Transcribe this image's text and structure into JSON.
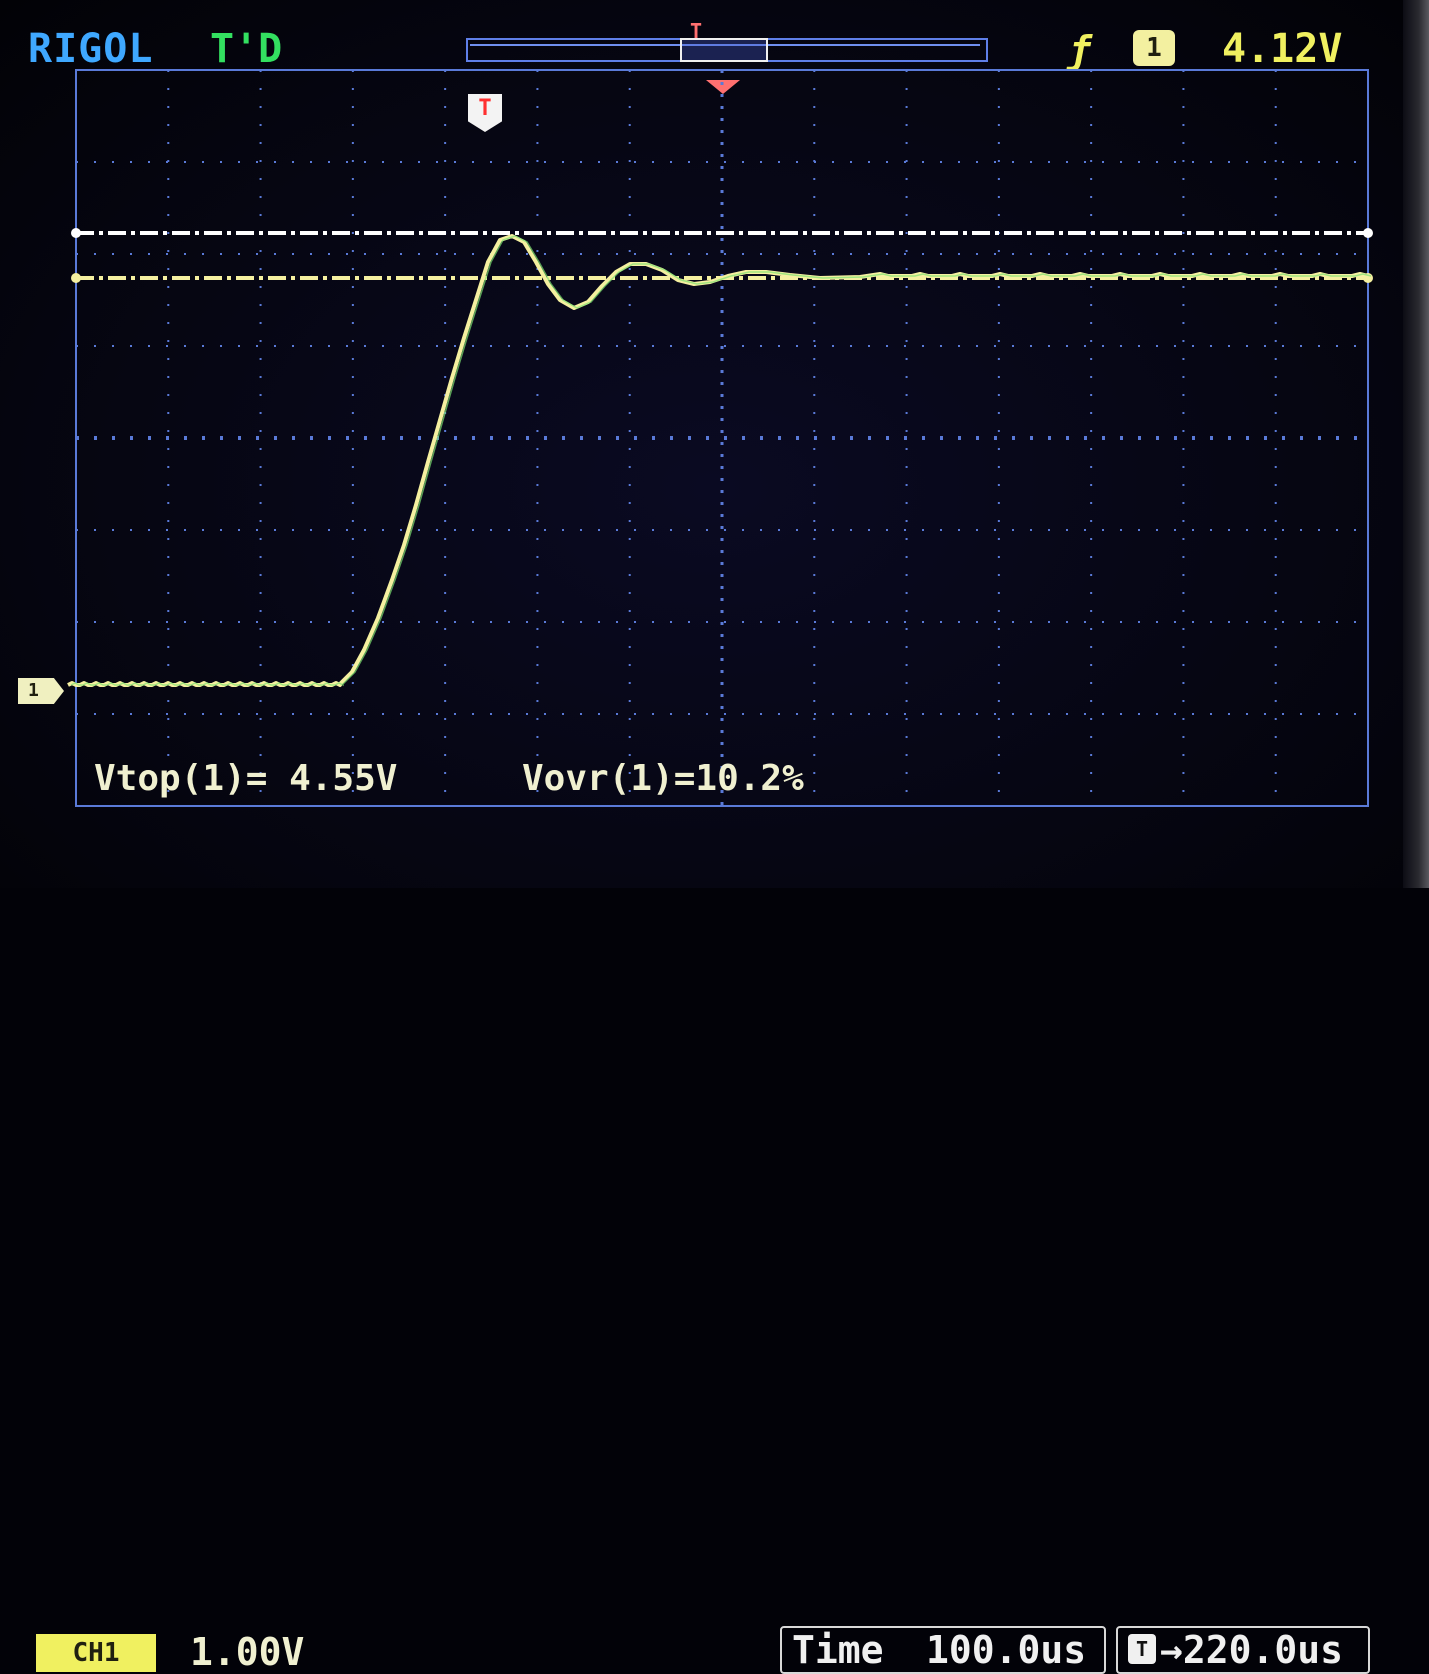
{
  "header": {
    "brand": "RIGOL",
    "acquire_status": "T'D",
    "trigger_position_label": "T",
    "trigger_flag_label": "T",
    "trigger_edge_icon": "rising-edge-icon",
    "trigger_source": "1",
    "trigger_level": "4.12V"
  },
  "screen": {
    "channel_marker": "1",
    "cursor_lines": [
      {
        "name": "top-level-line",
        "color": "#ffffff"
      },
      {
        "name": "base-level-line",
        "color": "#f5f0a0"
      }
    ],
    "trace_color": "#f5f0a0",
    "grid_color": "#5a7ad8"
  },
  "measurements": [
    {
      "label": "Vtop(1)=",
      "value": "4.55V"
    },
    {
      "label": "Vovr(1)=",
      "value": "10.2%"
    }
  ],
  "status": {
    "channel_badge": "CH1",
    "volts_per_div": "1.00V",
    "time_label": "Time",
    "time_per_div": "100.0us",
    "trigger_delay": "220.0us",
    "delay_icon": "T"
  }
}
